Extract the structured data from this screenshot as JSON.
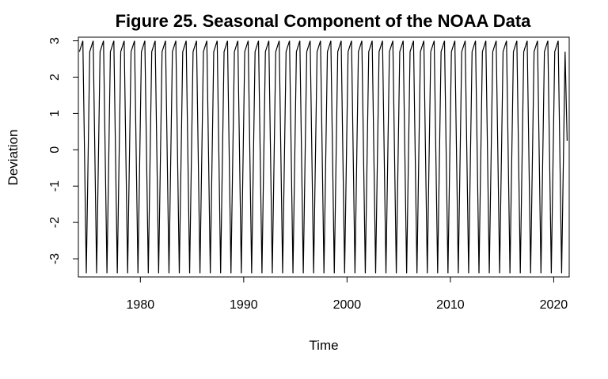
{
  "chart_data": {
    "type": "line",
    "title": "Figure 25. Seasonal Component of the NOAA Data",
    "xlabel": "Time",
    "ylabel": "Deviation",
    "xlim": [
      1974,
      2021.5
    ],
    "ylim": [
      -3.5,
      3.1
    ],
    "x_ticks": [
      1980,
      1990,
      2000,
      2010,
      2020
    ],
    "x_tick_labels": [
      "1980",
      "1990",
      "2000",
      "2010",
      "2020"
    ],
    "y_ticks": [
      3,
      2,
      1,
      0,
      -1,
      -2,
      -3
    ],
    "y_tick_labels": [
      "3",
      "2",
      "1",
      "0",
      "-1",
      "-2",
      "-3"
    ],
    "series": [
      {
        "period": 1,
        "start": 1974.1,
        "end": 2021.3,
        "seasonal_pattern": [
          2.7,
          3.0,
          -3.4
        ],
        "last_value": 0.25,
        "color": "#000000"
      }
    ],
    "grid": false,
    "legend": "none"
  }
}
